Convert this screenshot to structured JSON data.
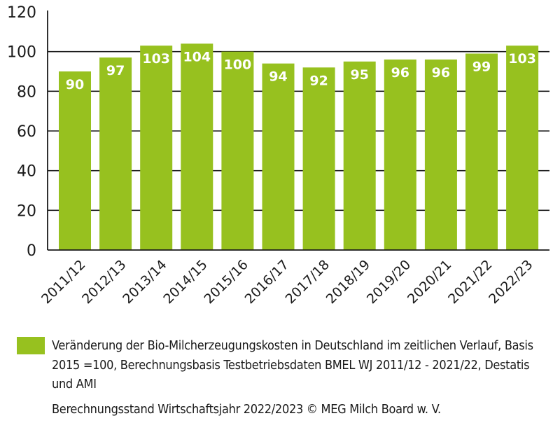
{
  "chart_data": {
    "type": "bar",
    "categories": [
      "2011/12",
      "2012/13",
      "2013/14",
      "2014/15",
      "2015/16",
      "2016/17",
      "2017/18",
      "2018/19",
      "2019/20",
      "2020/21",
      "2021/22",
      "2022/23"
    ],
    "values": [
      90,
      97,
      103,
      104,
      100,
      94,
      92,
      95,
      96,
      96,
      99,
      103
    ],
    "ylim": [
      0,
      120
    ],
    "yticks": [
      0,
      20,
      40,
      60,
      80,
      100,
      120
    ],
    "grid": true,
    "bar_color": "#97c11f",
    "legend": {
      "placement": "bottom",
      "label": "Veränderung der Bio-Milcherzeugungskosten in Deutschland im zeitlichen Verlauf, Basis 2015 =100, Berechnungsbasis Testbetriebsdaten BMEL WJ 2011/12 - 2021/22, Destatis und AMI"
    },
    "credit": "Berechnungsstand Wirtschaftsjahr 2022/2023 © MEG Milch Board w. V."
  }
}
